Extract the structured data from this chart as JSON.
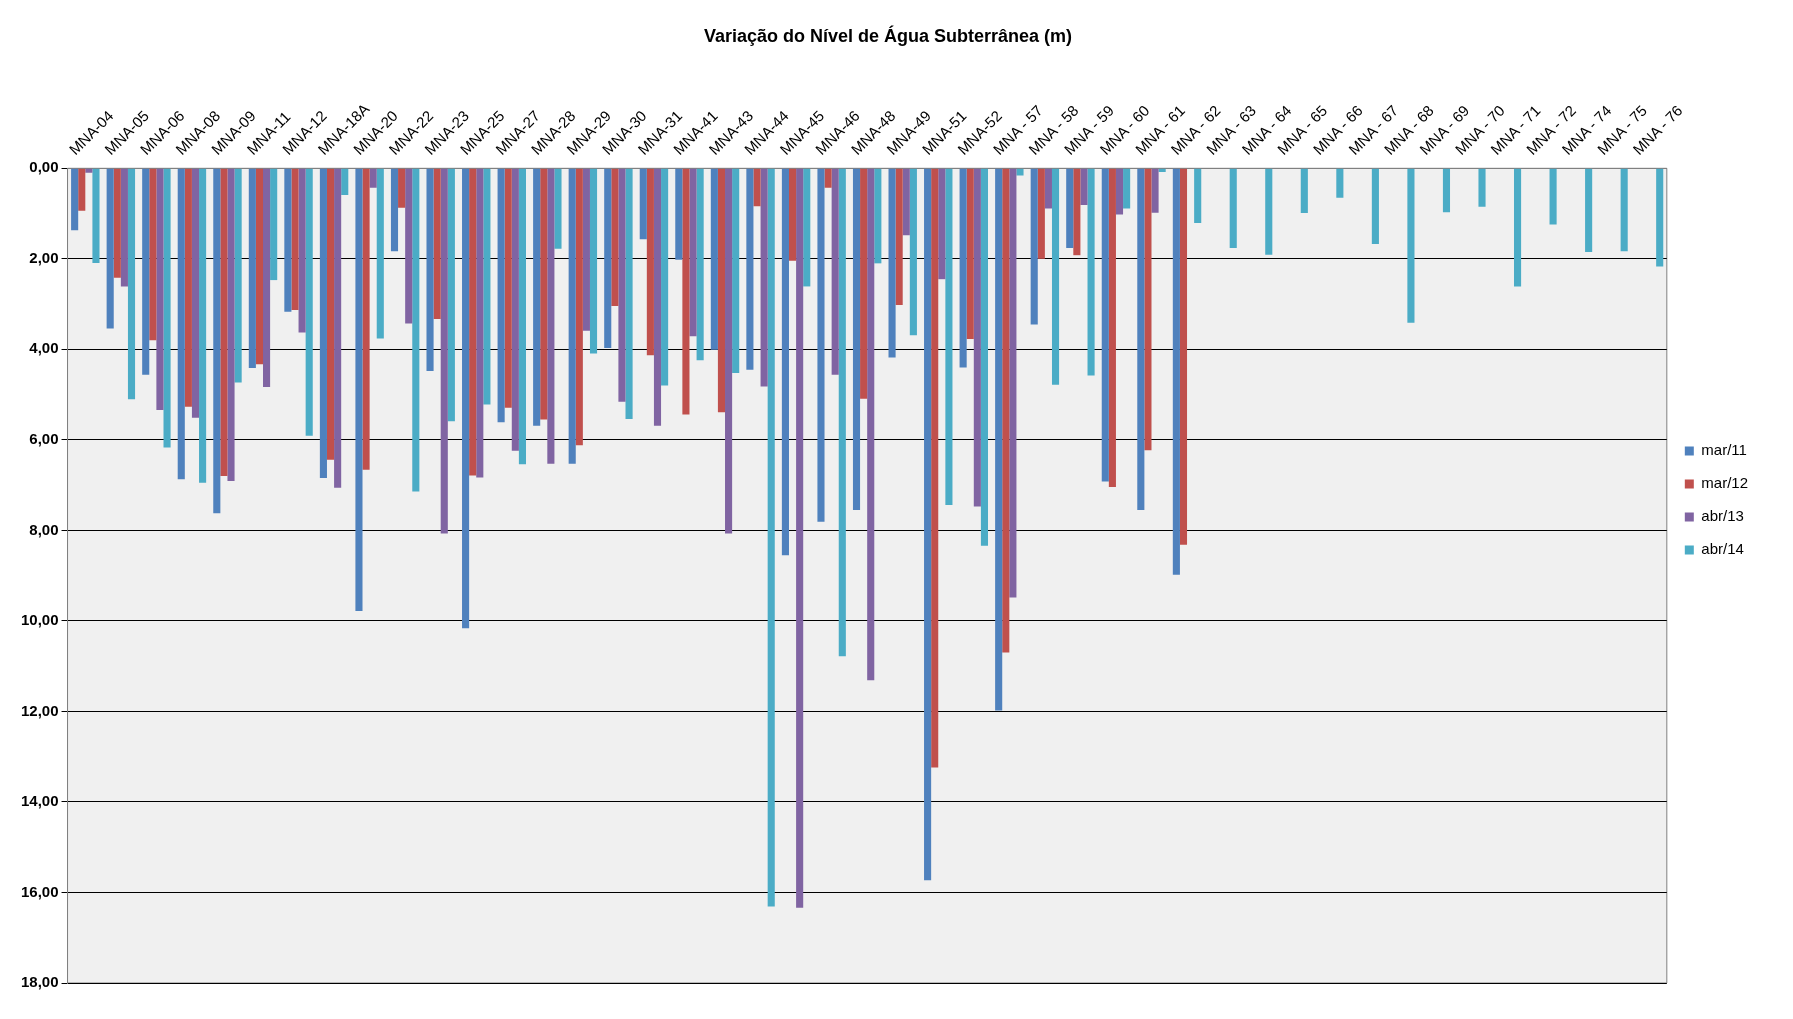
{
  "chart_data": {
    "type": "bar",
    "title": "Variação do Nível de Água Subterrânea (m)",
    "categories": [
      "MNA-04",
      "MNA-05",
      "MNA-06",
      "MNA-08",
      "MNA-09",
      "MNA-11",
      "MNA-12",
      "MNA-18A",
      "MNA-20",
      "MNA-22",
      "MNA-23",
      "MNA-25",
      "MNA-27",
      "MNA-28",
      "MNA-29",
      "MNA-30",
      "MNA-31",
      "MNA-41",
      "MNA-43",
      "MNA-44",
      "MNA-45",
      "MNA-46",
      "MNA-48",
      "MNA-49",
      "MNA-51",
      "MNA-52",
      "MNA - 57",
      "MNA - 58",
      "MNA - 59",
      "MNA - 60",
      "MNA - 61",
      "MNA - 62",
      "MNA - 63",
      "MNA - 64",
      "MNA - 65",
      "MNA - 66",
      "MNA - 67",
      "MNA - 68",
      "MNA - 69",
      "MNA - 70",
      "MNA - 71",
      "MNA - 72",
      "MNA - 74",
      "MNA - 75",
      "MNA - 76"
    ],
    "series": [
      {
        "name": "mar/11",
        "color": "#4f81bd",
        "values": [
          1.37,
          3.54,
          4.56,
          6.87,
          7.62,
          4.41,
          3.17,
          6.84,
          9.78,
          1.83,
          4.48,
          10.16,
          5.61,
          5.69,
          6.53,
          3.97,
          1.57,
          2.02,
          4.01,
          4.45,
          8.55,
          7.81,
          7.55,
          4.18,
          15.73,
          4.4,
          11.98,
          3.45,
          1.76,
          6.92,
          7.55,
          8.98,
          null,
          null,
          null,
          null,
          null,
          null,
          null,
          null,
          null,
          null,
          null,
          null,
          null
        ]
      },
      {
        "name": "mar/12",
        "color": "#c0504d",
        "values": [
          0.94,
          2.42,
          3.8,
          5.27,
          6.8,
          4.33,
          3.13,
          6.44,
          6.66,
          0.87,
          3.33,
          6.79,
          5.29,
          5.55,
          6.12,
          3.04,
          4.13,
          5.44,
          5.39,
          0.84,
          2.04,
          0.43,
          5.09,
          3.02,
          13.24,
          3.77,
          10.7,
          2.0,
          1.92,
          7.04,
          6.23,
          8.32,
          null,
          null,
          null,
          null,
          null,
          null,
          null,
          null,
          null,
          null,
          null,
          null,
          null
        ]
      },
      {
        "name": "abr/13",
        "color": "#8064a2",
        "values": [
          0.1,
          2.61,
          5.34,
          5.51,
          6.91,
          4.83,
          3.63,
          7.06,
          0.43,
          3.43,
          8.07,
          6.83,
          6.24,
          6.53,
          3.59,
          5.16,
          5.69,
          3.71,
          8.07,
          4.82,
          16.34,
          4.56,
          11.31,
          1.48,
          2.45,
          7.47,
          9.48,
          0.89,
          0.81,
          1.02,
          0.98,
          null,
          null,
          null,
          null,
          null,
          null,
          null,
          null,
          null,
          null,
          null,
          null,
          null,
          null
        ]
      },
      {
        "name": "abr/14",
        "color": "#4bacc6",
        "values": [
          2.09,
          5.1,
          6.17,
          6.95,
          4.73,
          2.47,
          5.91,
          0.59,
          3.76,
          7.14,
          5.59,
          5.22,
          6.54,
          1.78,
          4.09,
          5.54,
          4.8,
          4.24,
          4.52,
          16.31,
          2.61,
          10.78,
          2.1,
          3.69,
          7.44,
          8.34,
          0.16,
          4.78,
          4.58,
          0.89,
          0.08,
          1.21,
          1.76,
          1.91,
          0.99,
          0.65,
          1.67,
          3.41,
          0.97,
          0.85,
          2.61,
          1.24,
          1.85,
          1.83,
          2.17
        ]
      }
    ],
    "ylim": [
      18,
      0
    ],
    "yticks": [
      {
        "value": 0,
        "label": "0,00"
      },
      {
        "value": 2,
        "label": "2,00"
      },
      {
        "value": 4,
        "label": "4,00"
      },
      {
        "value": 6,
        "label": "6,00"
      },
      {
        "value": 8,
        "label": "8,00"
      },
      {
        "value": 10,
        "label": "10,00"
      },
      {
        "value": 12,
        "label": "12,00"
      },
      {
        "value": 14,
        "label": "14,00"
      },
      {
        "value": 16,
        "label": "16,00"
      },
      {
        "value": 18,
        "label": "18,00"
      }
    ],
    "grid": "y",
    "legend": "right"
  }
}
